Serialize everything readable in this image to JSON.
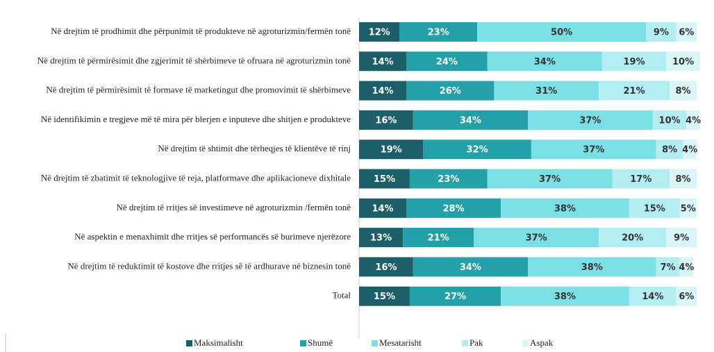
{
  "chart_data": {
    "type": "stacked-bar-horizontal",
    "categories": [
      "Në drejtim të prodhimit dhe përpunimit të produkteve në agroturizmin/fermën tonë",
      "Në drejtim të përmirësimit dhe zgjerimit të shërbimeve të ofruara në agroturizmin tonë",
      "Në drejtim të përmirësimit të formave të marketingut dhe promovimit të shërbimeve",
      "Në identifikimin e tregjeve më të mira për blerjen e inputeve dhe shitjen e produkteve",
      "Në drejtim të shtimit dhe tërheqjes të klientëve të rinj",
      "Në drejtim të zbatimit të teknologjive të reja, platformave dhe aplikacioneve dixhitale",
      "Në drejtim të rritjes së investimeve në agroturizmin /fermën tonë",
      "Në aspektin e menaxhimit dhe rritjes së performancës së burimeve njerëzore",
      "Në drejtim të reduktimit të kostove dhe rritjes së të ardhurave në biznesin tonë",
      "Total"
    ],
    "series": [
      {
        "name": "Maksimalisht",
        "color": "#1d5f69",
        "values": [
          12,
          14,
          14,
          16,
          19,
          15,
          14,
          13,
          16,
          15
        ],
        "value_labels": [
          "12%",
          "14%",
          "14%",
          "16%",
          "19%",
          "15%",
          "14%",
          "13%",
          "16%",
          "15%"
        ]
      },
      {
        "name": "Shumë",
        "color": "#23a0a8",
        "values": [
          23,
          24,
          26,
          34,
          32,
          23,
          28,
          21,
          34,
          27
        ],
        "value_labels": [
          "23%",
          "24%",
          "26%",
          "34%",
          "32%",
          "23%",
          "28%",
          "21%",
          "34%",
          "27%"
        ]
      },
      {
        "name": "Mesatarisht",
        "color": "#7ddfe6",
        "values": [
          50,
          34,
          31,
          37,
          37,
          37,
          38,
          37,
          38,
          38
        ],
        "value_labels": [
          "50%",
          "34%",
          "31%",
          "37%",
          "37%",
          "37%",
          "38%",
          "37%",
          "38%",
          "38%"
        ]
      },
      {
        "name": "Pak",
        "color": "#b4edf1",
        "values": [
          9,
          19,
          21,
          10,
          8,
          17,
          15,
          20,
          7,
          14
        ],
        "value_labels": [
          "9%",
          "19%",
          "21%",
          "10%",
          "8%",
          "17%",
          "15%",
          "20%",
          "7%",
          "14%"
        ]
      },
      {
        "name": "Aspak",
        "color": "#daf5f8",
        "values": [
          6,
          10,
          8,
          4,
          4,
          8,
          5,
          9,
          4,
          6
        ],
        "value_labels": [
          "6%",
          "10%",
          "8%",
          "4%",
          "4%",
          "8%",
          "5%",
          "9%",
          "4%",
          "6%"
        ]
      }
    ]
  }
}
